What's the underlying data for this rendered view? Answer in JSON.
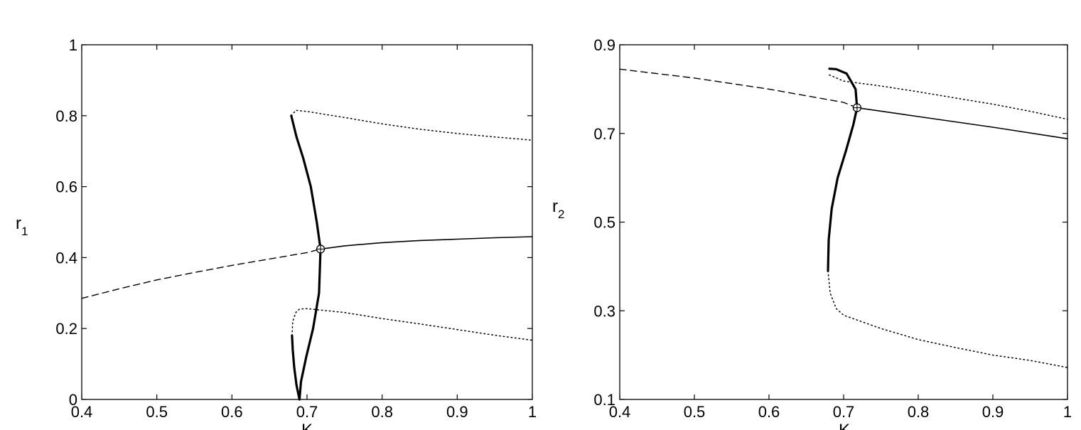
{
  "chart_data": [
    {
      "type": "line",
      "xlabel": "K",
      "ylabel": "r",
      "ylabel_subscript": "1",
      "xlim": [
        0.4,
        1.0
      ],
      "ylim": [
        0,
        1.0
      ],
      "xticks": [
        "0.4",
        "0.5",
        "0.6",
        "0.7",
        "0.8",
        "0.9",
        "1"
      ],
      "yticks": [
        "0",
        "0.2",
        "0.4",
        "0.6",
        "0.8",
        "1"
      ],
      "xtick_values": [
        0.4,
        0.5,
        0.6,
        0.7,
        0.8,
        0.9,
        1.0
      ],
      "ytick_values": [
        0,
        0.2,
        0.4,
        0.6,
        0.8,
        1.0
      ],
      "grid": false,
      "series": [
        {
          "style": "dashed",
          "x": [
            0.4,
            0.45,
            0.5,
            0.55,
            0.6,
            0.65,
            0.7,
            0.718
          ],
          "y": [
            0.285,
            0.312,
            0.337,
            0.358,
            0.378,
            0.396,
            0.414,
            0.424
          ]
        },
        {
          "style": "solid",
          "x": [
            0.718,
            0.75,
            0.8,
            0.85,
            0.9,
            0.95,
            1.0
          ],
          "y": [
            0.424,
            0.433,
            0.442,
            0.448,
            0.452,
            0.456,
            0.459
          ]
        },
        {
          "style": "thick",
          "x": [
            0.679,
            0.686,
            0.695,
            0.705,
            0.713,
            0.718,
            0.716,
            0.708,
            0.699,
            0.692,
            0.69
          ],
          "y": [
            0.8,
            0.74,
            0.68,
            0.6,
            0.5,
            0.424,
            0.3,
            0.2,
            0.12,
            0.05,
            0.0
          ]
        },
        {
          "style": "thick",
          "x": [
            0.69,
            0.686,
            0.683,
            0.681,
            0.68
          ],
          "y": [
            0.0,
            0.04,
            0.09,
            0.14,
            0.18
          ]
        },
        {
          "style": "dotted",
          "x": [
            0.679,
            0.685,
            0.7,
            0.75,
            0.8,
            0.85,
            0.9,
            0.95,
            1.0
          ],
          "y": [
            0.8,
            0.815,
            0.812,
            0.795,
            0.777,
            0.762,
            0.75,
            0.74,
            0.731
          ]
        },
        {
          "style": "dotted",
          "x": [
            0.68,
            0.681,
            0.685,
            0.69,
            0.7,
            0.75,
            0.8,
            0.85,
            0.9,
            0.95,
            1.0
          ],
          "y": [
            0.18,
            0.22,
            0.245,
            0.255,
            0.256,
            0.245,
            0.228,
            0.213,
            0.197,
            0.181,
            0.167
          ]
        }
      ],
      "markers": [
        {
          "x": 0.718,
          "y": 0.424,
          "shape": "circle-plus"
        }
      ]
    },
    {
      "type": "line",
      "xlabel": "K",
      "ylabel": "r",
      "ylabel_subscript": "2",
      "xlim": [
        0.4,
        1.0
      ],
      "ylim": [
        0.1,
        0.9
      ],
      "xticks": [
        "0.4",
        "0.5",
        "0.6",
        "0.7",
        "0.8",
        "0.9",
        "1"
      ],
      "yticks": [
        "0.1",
        "0.3",
        "0.5",
        "0.7",
        "0.9"
      ],
      "xtick_values": [
        0.4,
        0.5,
        0.6,
        0.7,
        0.8,
        0.9,
        1.0
      ],
      "ytick_values": [
        0.1,
        0.3,
        0.5,
        0.7,
        0.9
      ],
      "grid": false,
      "series": [
        {
          "style": "dashed",
          "x": [
            0.4,
            0.5,
            0.6,
            0.7,
            0.718
          ],
          "y": [
            0.845,
            0.825,
            0.8,
            0.77,
            0.758
          ]
        },
        {
          "style": "solid",
          "x": [
            0.718,
            0.8,
            0.9,
            1.0
          ],
          "y": [
            0.758,
            0.738,
            0.714,
            0.688
          ]
        },
        {
          "style": "thick",
          "x": [
            0.681,
            0.69,
            0.704,
            0.716,
            0.718,
            0.713,
            0.703,
            0.692,
            0.684,
            0.68,
            0.679
          ],
          "y": [
            0.846,
            0.845,
            0.835,
            0.8,
            0.758,
            0.72,
            0.66,
            0.6,
            0.53,
            0.46,
            0.39
          ]
        },
        {
          "style": "dotted",
          "x": [
            0.681,
            0.7,
            0.75,
            0.8,
            0.85,
            0.9,
            0.95,
            1.0
          ],
          "y": [
            0.832,
            0.818,
            0.807,
            0.794,
            0.78,
            0.766,
            0.75,
            0.732
          ]
        },
        {
          "style": "dotted",
          "x": [
            0.679,
            0.682,
            0.69,
            0.7,
            0.75,
            0.8,
            0.85,
            0.9,
            0.95,
            1.0
          ],
          "y": [
            0.39,
            0.34,
            0.305,
            0.29,
            0.26,
            0.235,
            0.217,
            0.2,
            0.188,
            0.172
          ]
        }
      ],
      "markers": [
        {
          "x": 0.718,
          "y": 0.758,
          "shape": "circle-plus"
        }
      ]
    }
  ]
}
